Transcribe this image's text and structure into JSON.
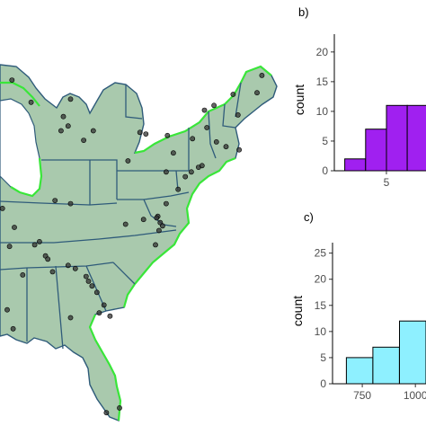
{
  "panels": {
    "b_label": "b)",
    "c_label": "c)"
  },
  "map": {
    "land_color": "#a9c9ad",
    "border_color": "#2f5b7a",
    "coast_color": "#39e639",
    "point_color": "#333333",
    "points": [
      {
        "lon": -89.5,
        "lat": 46.3
      },
      {
        "lon": -87.9,
        "lat": 44.9
      },
      {
        "lon": -84.6,
        "lat": 45.1
      },
      {
        "lon": -85.2,
        "lat": 44.0
      },
      {
        "lon": -84.8,
        "lat": 43.4
      },
      {
        "lon": -85.4,
        "lat": 43.1
      },
      {
        "lon": -82.7,
        "lat": 43.1
      },
      {
        "lon": -83.5,
        "lat": 42.5
      },
      {
        "lon": -78.8,
        "lat": 43.0
      },
      {
        "lon": -78.3,
        "lat": 42.9
      },
      {
        "lon": -76.5,
        "lat": 42.8
      },
      {
        "lon": -76.0,
        "lat": 41.7
      },
      {
        "lon": -74.4,
        "lat": 42.6
      },
      {
        "lon": -73.4,
        "lat": 44.4
      },
      {
        "lon": -73.2,
        "lat": 43.3
      },
      {
        "lon": -72.6,
        "lat": 44.7
      },
      {
        "lon": -71.0,
        "lat": 45.4
      },
      {
        "lon": -70.6,
        "lat": 44.1
      },
      {
        "lon": -69.0,
        "lat": 45.5
      },
      {
        "lon": -68.6,
        "lat": 46.6
      },
      {
        "lon": -72.4,
        "lat": 42.4
      },
      {
        "lon": -71.6,
        "lat": 42.1
      },
      {
        "lon": -70.5,
        "lat": 41.9
      },
      {
        "lon": -73.9,
        "lat": 40.8
      },
      {
        "lon": -73.6,
        "lat": 40.9
      },
      {
        "lon": -74.5,
        "lat": 40.5
      },
      {
        "lon": -75.0,
        "lat": 40.2
      },
      {
        "lon": -76.6,
        "lat": 40.5
      },
      {
        "lon": -79.8,
        "lat": 41.2
      },
      {
        "lon": -75.6,
        "lat": 39.4
      },
      {
        "lon": -76.6,
        "lat": 38.5
      },
      {
        "lon": -77.3,
        "lat": 37.7
      },
      {
        "lon": -77.4,
        "lat": 37.6
      },
      {
        "lon": -77.1,
        "lat": 37.3
      },
      {
        "lon": -76.9,
        "lat": 37.1
      },
      {
        "lon": -77.2,
        "lat": 36.8
      },
      {
        "lon": -78.5,
        "lat": 37.5
      },
      {
        "lon": -80.0,
        "lat": 37.2
      },
      {
        "lon": -77.5,
        "lat": 35.9
      },
      {
        "lon": -84.6,
        "lat": 38.5
      },
      {
        "lon": -85.9,
        "lat": 38.7
      },
      {
        "lon": -89.3,
        "lat": 37.0
      },
      {
        "lon": -87.2,
        "lat": 36.1
      },
      {
        "lon": -87.6,
        "lat": 35.9
      },
      {
        "lon": -86.7,
        "lat": 35.2
      },
      {
        "lon": -86.5,
        "lat": 35.0
      },
      {
        "lon": -89.7,
        "lat": 35.8
      },
      {
        "lon": -88.6,
        "lat": 34.0
      },
      {
        "lon": -86.1,
        "lat": 34.2
      },
      {
        "lon": -84.8,
        "lat": 34.6
      },
      {
        "lon": -84.2,
        "lat": 34.4
      },
      {
        "lon": -83.3,
        "lat": 33.9
      },
      {
        "lon": -83.1,
        "lat": 33.6
      },
      {
        "lon": -82.8,
        "lat": 33.3
      },
      {
        "lon": -82.4,
        "lat": 32.9
      },
      {
        "lon": -84.6,
        "lat": 31.3
      },
      {
        "lon": -82.2,
        "lat": 31.6
      },
      {
        "lon": -81.8,
        "lat": 32.1
      },
      {
        "lon": -81.3,
        "lat": 31.4
      },
      {
        "lon": -89.4,
        "lat": 30.6
      },
      {
        "lon": -89.9,
        "lat": 31.8
      },
      {
        "lon": -80.5,
        "lat": 25.6
      },
      {
        "lon": -81.6,
        "lat": 25.3
      },
      {
        "lon": -90.3,
        "lat": 38.2
      }
    ]
  },
  "hist_b": {
    "fill": "#a020f0",
    "ylabel": "count",
    "y_ticks": [
      "0",
      "5",
      "10",
      "15",
      "20"
    ],
    "x_ticks": [
      "5"
    ]
  },
  "hist_c": {
    "fill": "#8ef0ff",
    "ylabel": "count",
    "y_ticks": [
      "0",
      "5",
      "10",
      "15",
      "20",
      "25"
    ],
    "x_ticks": [
      "750",
      "1000"
    ]
  },
  "chart_data": [
    {
      "type": "bar",
      "panel": "b)",
      "bin_edges": [
        3,
        4,
        5,
        6,
        7
      ],
      "values": [
        2,
        7,
        11,
        11
      ],
      "ylabel": "count",
      "ylim": [
        0,
        23
      ],
      "xlim": [
        2.5,
        6.9
      ],
      "x_ticks": [
        5
      ],
      "y_ticks": [
        0,
        5,
        10,
        15,
        20
      ],
      "grid": false
    },
    {
      "type": "bar",
      "panel": "c)",
      "bin_edges": [
        675,
        800,
        925,
        1050
      ],
      "values": [
        5,
        7,
        12
      ],
      "ylabel": "count",
      "ylim": [
        0,
        27
      ],
      "xlim": [
        610,
        1050
      ],
      "x_ticks": [
        750,
        1000
      ],
      "y_ticks": [
        0,
        5,
        10,
        15,
        20,
        25
      ],
      "grid": false
    }
  ]
}
